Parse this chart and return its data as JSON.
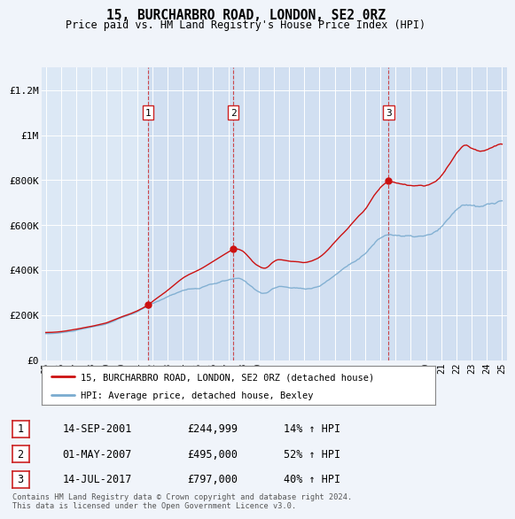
{
  "title": "15, BURCHARBRO ROAD, LONDON, SE2 0RZ",
  "subtitle": "Price paid vs. HM Land Registry's House Price Index (HPI)",
  "background_color": "#f0f4fa",
  "plot_bg_color": "#dce8f5",
  "legend_label_red": "15, BURCHARBRO ROAD, LONDON, SE2 0RZ (detached house)",
  "legend_label_blue": "HPI: Average price, detached house, Bexley",
  "footer": "Contains HM Land Registry data © Crown copyright and database right 2024.\nThis data is licensed under the Open Government Licence v3.0.",
  "sale_events": [
    {
      "num": 1,
      "date": "14-SEP-2001",
      "price": 244999,
      "pct": "14%",
      "year_x": 2001.71
    },
    {
      "num": 2,
      "date": "01-MAY-2007",
      "price": 495000,
      "pct": "52%",
      "year_x": 2007.33
    },
    {
      "num": 3,
      "date": "14-JUL-2017",
      "price": 797000,
      "pct": "40%",
      "year_x": 2017.54
    }
  ],
  "ylim": [
    0,
    1300000
  ],
  "xlim": [
    1994.7,
    2025.3
  ],
  "yticks": [
    0,
    200000,
    400000,
    600000,
    800000,
    1000000,
    1200000
  ],
  "ytick_labels": [
    "£0",
    "£200K",
    "£400K",
    "£600K",
    "£800K",
    "£1M",
    "£1.2M"
  ],
  "xticks": [
    1995,
    1996,
    1997,
    1998,
    1999,
    2000,
    2001,
    2002,
    2003,
    2004,
    2005,
    2006,
    2007,
    2008,
    2009,
    2010,
    2011,
    2012,
    2013,
    2014,
    2015,
    2016,
    2017,
    2018,
    2019,
    2020,
    2021,
    2022,
    2023,
    2024,
    2025
  ],
  "xtick_labels": [
    "95",
    "96",
    "97",
    "98",
    "99",
    "00",
    "01",
    "02",
    "03",
    "04",
    "05",
    "06",
    "07",
    "08",
    "09",
    "10",
    "11",
    "12",
    "13",
    "14",
    "15",
    "16",
    "17",
    "18",
    "19",
    "20",
    "21",
    "22",
    "23",
    "24",
    "25"
  ]
}
